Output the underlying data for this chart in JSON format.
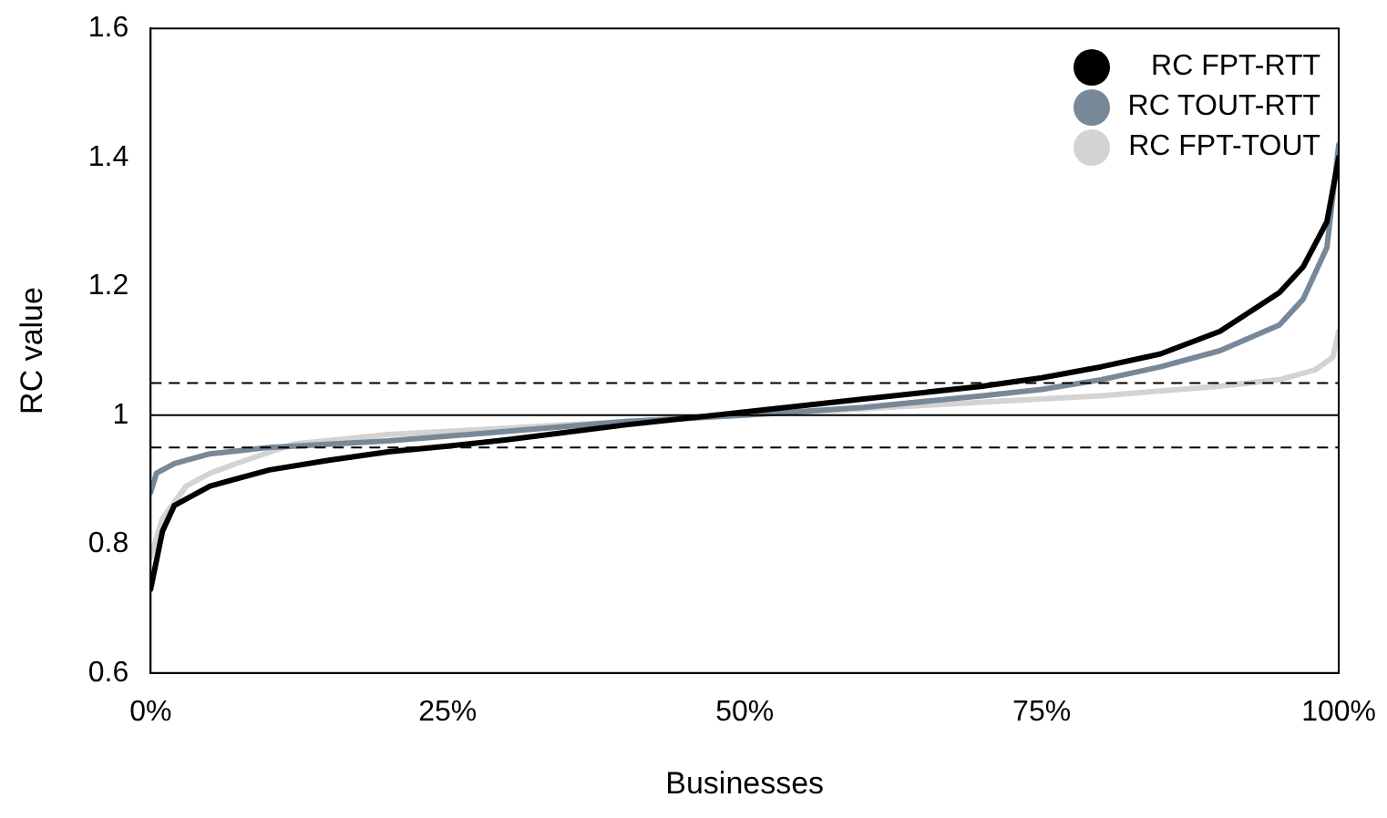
{
  "chart_data": {
    "type": "line",
    "xlabel": "Businesses",
    "ylabel": "RC value",
    "xlim": [
      0,
      100
    ],
    "xticks": [
      {
        "value": 0,
        "label": "0%"
      },
      {
        "value": 25,
        "label": "25%"
      },
      {
        "value": 50,
        "label": "50%"
      },
      {
        "value": 75,
        "label": "75%"
      },
      {
        "value": 100,
        "label": "100%"
      }
    ],
    "ylim": [
      0.6,
      1.6
    ],
    "yticks": [
      0.6,
      0.8,
      1,
      1.2,
      1.4,
      1.6
    ],
    "grid": false,
    "legend": "top right",
    "marker": "none",
    "line_style": "solid",
    "ref_lines": [
      {
        "axis": "y",
        "value": 1,
        "color": "#000000",
        "line_style": "solid"
      },
      {
        "axis": "y",
        "value": 1.05,
        "color": "#000000",
        "line_style": "dashed"
      },
      {
        "axis": "y",
        "value": 0.95,
        "color": "#000000",
        "line_style": "dashed"
      }
    ],
    "series": [
      {
        "name": "RC FPT-RTT",
        "color": "#000000",
        "x": [
          0,
          1,
          2,
          5,
          10,
          15,
          20,
          25,
          30,
          40,
          50,
          60,
          70,
          75,
          80,
          85,
          90,
          95,
          97,
          99,
          100
        ],
        "values": [
          0.73,
          0.82,
          0.86,
          0.89,
          0.915,
          0.93,
          0.943,
          0.952,
          0.962,
          0.985,
          1.005,
          1.025,
          1.045,
          1.058,
          1.075,
          1.095,
          1.13,
          1.19,
          1.23,
          1.3,
          1.4
        ]
      },
      {
        "name": "RC TOUT-RTT",
        "color": "#778899",
        "x": [
          0,
          0.5,
          2,
          5,
          10,
          20,
          30,
          40,
          50,
          60,
          70,
          75,
          80,
          85,
          90,
          95,
          97,
          99,
          100
        ],
        "values": [
          0.88,
          0.91,
          0.925,
          0.94,
          0.95,
          0.96,
          0.975,
          0.99,
          1.0,
          1.012,
          1.03,
          1.04,
          1.055,
          1.075,
          1.1,
          1.14,
          1.18,
          1.26,
          1.42
        ]
      },
      {
        "name": "RC FPT-TOUT",
        "color": "#d3d3d3",
        "x": [
          0,
          1,
          3,
          5,
          8,
          12,
          20,
          30,
          40,
          50,
          60,
          70,
          80,
          90,
          95,
          98,
          99.5,
          100
        ],
        "values": [
          0.78,
          0.84,
          0.89,
          0.91,
          0.93,
          0.955,
          0.97,
          0.98,
          0.99,
          1.0,
          1.01,
          1.02,
          1.03,
          1.045,
          1.055,
          1.07,
          1.09,
          1.13
        ]
      }
    ]
  }
}
